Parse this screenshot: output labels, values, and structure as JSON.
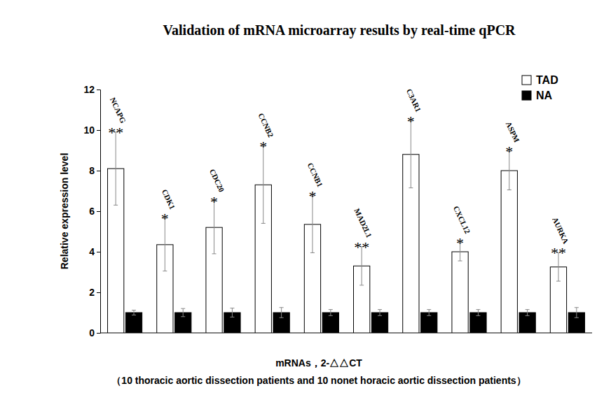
{
  "chart_data": {
    "type": "bar",
    "title": "Validation of mRNA microarray results by real-time qPCR",
    "y_label": "Relative expression level",
    "x_label": "mRNAs，2-△△CT",
    "x_label_note": "（10 thoracic aortic dissection patients and 10 nonet horacic aortic dissection patients）",
    "categories": [
      "NCAPG",
      "CDK1",
      "CDC20",
      "CCNB2",
      "CCNB1",
      "MAD2L1",
      "C3AR1",
      "CXCL12",
      "ASPM",
      "AURKA"
    ],
    "significance": [
      "**",
      "*",
      "*",
      "*",
      "*",
      "**",
      "*",
      "*",
      "*",
      "**"
    ],
    "series": [
      {
        "name": "TAD",
        "color": "#ffffff",
        "values": [
          8.1,
          4.35,
          5.2,
          7.3,
          5.35,
          3.3,
          8.8,
          4.0,
          8.0,
          3.25
        ],
        "errors": [
          1.8,
          1.3,
          1.3,
          1.9,
          1.4,
          0.95,
          1.65,
          0.45,
          0.95,
          0.7
        ]
      },
      {
        "name": "NA",
        "color": "#000000",
        "values": [
          1.0,
          1.0,
          1.0,
          1.0,
          1.0,
          1.0,
          1.0,
          1.0,
          1.0,
          1.0
        ],
        "errors": [
          0.12,
          0.2,
          0.22,
          0.25,
          0.15,
          0.15,
          0.15,
          0.15,
          0.15,
          0.25
        ]
      }
    ],
    "ylim": [
      0,
      12
    ],
    "yticks": [
      0,
      2,
      4,
      6,
      8,
      10,
      12
    ],
    "grid": false,
    "legend": "top-right",
    "tick_labels": "y"
  }
}
